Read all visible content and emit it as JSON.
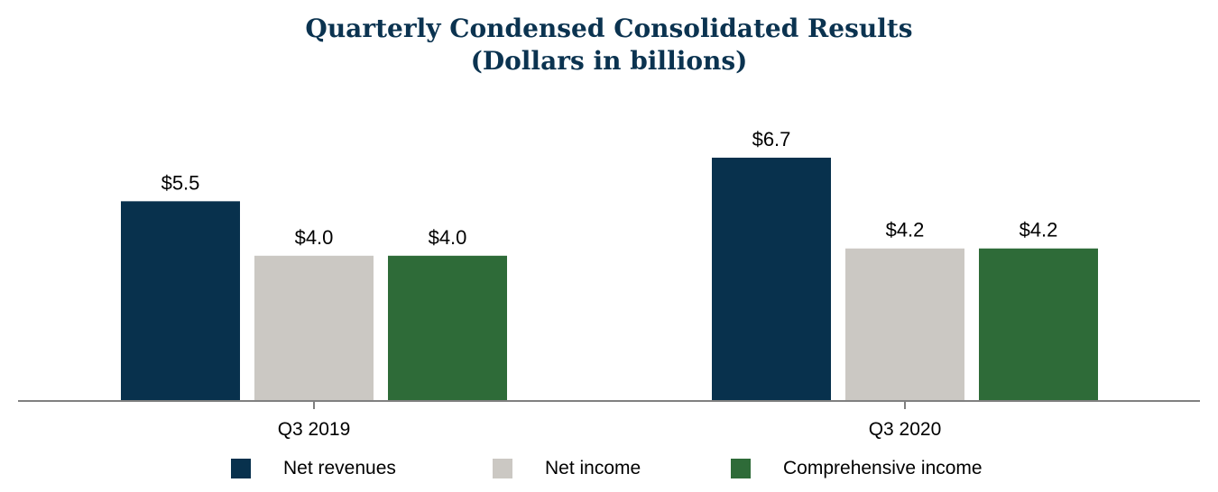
{
  "title": {
    "line1": "Quarterly Condensed Consolidated Results",
    "line2": "(Dollars in billions)"
  },
  "chart_data": {
    "type": "bar",
    "categories": [
      "Q3 2019",
      "Q3 2020"
    ],
    "series": [
      {
        "name": "Net revenues",
        "values": [
          5.5,
          6.7
        ],
        "labels": [
          "$5.5",
          "$6.7"
        ],
        "color": "#08314d"
      },
      {
        "name": "Net income",
        "values": [
          4.0,
          4.2
        ],
        "labels": [
          "$4.0",
          "$4.2"
        ],
        "color": "#cbc8c3"
      },
      {
        "name": "Comprehensive income",
        "values": [
          4.0,
          4.2
        ],
        "labels": [
          "$4.0",
          "$4.2"
        ],
        "color": "#2e6b38"
      }
    ],
    "ylim": [
      0,
      7.5
    ],
    "grid": false,
    "legend": "bottom-center",
    "axis_color": "#808080"
  }
}
